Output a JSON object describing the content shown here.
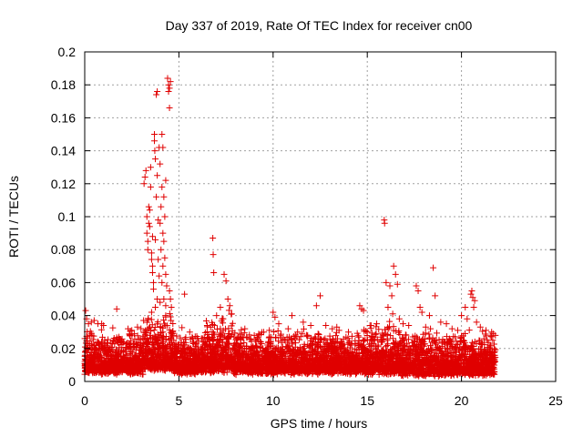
{
  "chart_data": {
    "type": "scatter",
    "title": "Day 337 of 2019, Rate Of TEC Index for receiver cn00",
    "xlabel": "GPS time / hours",
    "ylabel": "ROTI / TECUs",
    "xlim": [
      0,
      25
    ],
    "ylim": [
      0,
      0.2
    ],
    "xticks": [
      0,
      5,
      10,
      15,
      20,
      25
    ],
    "yticks": [
      0,
      0.02,
      0.04,
      0.06,
      0.08,
      0.1,
      0.12,
      0.14,
      0.16,
      0.18,
      0.2
    ],
    "xtick_labels": [
      "0",
      "5",
      "10",
      "15",
      "20",
      "25"
    ],
    "ytick_labels": [
      "0",
      "0.02",
      "0.04",
      "0.06",
      "0.08",
      "0.1",
      "0.12",
      "0.14",
      "0.16",
      "0.18",
      "0.2"
    ],
    "grid": true,
    "marker": "+",
    "color": "#e00000",
    "series": [
      {
        "points": [
          [
            0.05,
            0.043
          ],
          [
            0.1,
            0.038
          ],
          [
            0.2,
            0.035
          ],
          [
            0.35,
            0.036
          ],
          [
            0.5,
            0.037
          ],
          [
            0.7,
            0.035
          ],
          [
            0.9,
            0.035
          ],
          [
            1.0,
            0.034
          ],
          [
            1.7,
            0.044
          ],
          [
            2.3,
            0.032
          ],
          [
            2.5,
            0.031
          ],
          [
            2.8,
            0.033
          ],
          [
            3.15,
            0.12
          ],
          [
            3.2,
            0.124
          ],
          [
            3.25,
            0.128
          ],
          [
            3.3,
            0.1
          ],
          [
            3.3,
            0.09
          ],
          [
            3.35,
            0.085
          ],
          [
            3.35,
            0.08
          ],
          [
            3.4,
            0.106
          ],
          [
            3.4,
            0.096
          ],
          [
            3.45,
            0.104
          ],
          [
            3.45,
            0.094
          ],
          [
            3.5,
            0.13
          ],
          [
            3.5,
            0.118
          ],
          [
            3.55,
            0.078
          ],
          [
            3.55,
            0.074
          ],
          [
            3.6,
            0.07
          ],
          [
            3.6,
            0.066
          ],
          [
            3.6,
            0.088
          ],
          [
            3.65,
            0.06
          ],
          [
            3.65,
            0.056
          ],
          [
            3.7,
            0.15
          ],
          [
            3.7,
            0.146
          ],
          [
            3.72,
            0.14
          ],
          [
            3.75,
            0.135
          ],
          [
            3.75,
            0.086
          ],
          [
            3.8,
            0.174
          ],
          [
            3.8,
            0.112
          ],
          [
            3.85,
            0.176
          ],
          [
            3.85,
            0.125
          ],
          [
            3.85,
            0.05
          ],
          [
            3.9,
            0.098
          ],
          [
            3.9,
            0.074
          ],
          [
            3.95,
            0.142
          ],
          [
            3.95,
            0.064
          ],
          [
            4.0,
            0.132
          ],
          [
            4.0,
            0.096
          ],
          [
            4.05,
            0.106
          ],
          [
            4.05,
            0.08
          ],
          [
            4.1,
            0.15
          ],
          [
            4.1,
            0.118
          ],
          [
            4.1,
            0.06
          ],
          [
            4.15,
            0.142
          ],
          [
            4.15,
            0.09
          ],
          [
            4.15,
            0.07
          ],
          [
            4.2,
            0.112
          ],
          [
            4.2,
            0.085
          ],
          [
            4.2,
            0.05
          ],
          [
            4.25,
            0.1
          ],
          [
            4.25,
            0.075
          ],
          [
            4.3,
            0.122
          ],
          [
            4.3,
            0.065
          ],
          [
            4.3,
            0.046
          ],
          [
            4.35,
            0.058
          ],
          [
            4.4,
            0.184
          ],
          [
            4.45,
            0.18
          ],
          [
            4.45,
            0.176
          ],
          [
            4.5,
            0.178
          ],
          [
            4.5,
            0.166
          ],
          [
            4.5,
            0.055
          ],
          [
            4.55,
            0.182
          ],
          [
            4.55,
            0.05
          ],
          [
            4.6,
            0.045
          ],
          [
            3.55,
            0.042
          ],
          [
            3.75,
            0.045
          ],
          [
            4.0,
            0.048
          ],
          [
            4.3,
            0.04
          ],
          [
            5.3,
            0.053
          ],
          [
            6.5,
            0.034
          ],
          [
            6.8,
            0.087
          ],
          [
            6.82,
            0.077
          ],
          [
            6.85,
            0.066
          ],
          [
            7.0,
            0.04
          ],
          [
            7.2,
            0.045
          ],
          [
            7.4,
            0.065
          ],
          [
            7.5,
            0.061
          ],
          [
            7.6,
            0.05
          ],
          [
            7.7,
            0.046
          ],
          [
            7.3,
            0.038
          ],
          [
            7.8,
            0.041
          ],
          [
            7.2,
            0.032
          ],
          [
            8.5,
            0.032
          ],
          [
            9.0,
            0.028
          ],
          [
            9.5,
            0.03
          ],
          [
            9.8,
            0.031
          ],
          [
            10.0,
            0.042
          ],
          [
            10.1,
            0.039
          ],
          [
            10.3,
            0.035
          ],
          [
            10.8,
            0.032
          ],
          [
            11.0,
            0.04
          ],
          [
            11.3,
            0.03
          ],
          [
            11.6,
            0.036
          ],
          [
            12.0,
            0.034
          ],
          [
            12.3,
            0.046
          ],
          [
            12.5,
            0.052
          ],
          [
            12.8,
            0.034
          ],
          [
            13.5,
            0.031
          ],
          [
            14.0,
            0.03
          ],
          [
            14.6,
            0.046
          ],
          [
            14.7,
            0.044
          ],
          [
            14.8,
            0.043
          ],
          [
            15.0,
            0.03
          ],
          [
            15.2,
            0.034
          ],
          [
            15.5,
            0.035
          ],
          [
            15.9,
            0.098
          ],
          [
            15.92,
            0.096
          ],
          [
            16.0,
            0.06
          ],
          [
            16.2,
            0.058
          ],
          [
            16.3,
            0.052
          ],
          [
            16.4,
            0.07
          ],
          [
            16.5,
            0.065
          ],
          [
            16.6,
            0.059
          ],
          [
            16.1,
            0.045
          ],
          [
            16.35,
            0.041
          ],
          [
            16.7,
            0.038
          ],
          [
            16.9,
            0.035
          ],
          [
            17.2,
            0.034
          ],
          [
            17.6,
            0.058
          ],
          [
            17.7,
            0.055
          ],
          [
            17.8,
            0.045
          ],
          [
            17.9,
            0.042
          ],
          [
            18.1,
            0.033
          ],
          [
            18.3,
            0.04
          ],
          [
            18.5,
            0.069
          ],
          [
            18.6,
            0.052
          ],
          [
            18.9,
            0.036
          ],
          [
            19.2,
            0.035
          ],
          [
            19.5,
            0.032
          ],
          [
            19.8,
            0.031
          ],
          [
            20.0,
            0.04
          ],
          [
            20.2,
            0.045
          ],
          [
            20.3,
            0.038
          ],
          [
            20.5,
            0.053
          ],
          [
            20.55,
            0.055
          ],
          [
            20.6,
            0.051
          ],
          [
            20.65,
            0.045
          ],
          [
            20.7,
            0.049
          ],
          [
            20.8,
            0.036
          ],
          [
            21.0,
            0.033
          ],
          [
            21.3,
            0.031
          ],
          [
            21.6,
            0.03
          ],
          [
            21.8,
            0.028
          ]
        ],
        "band": {
          "segments": [
            {
              "x": [
                0,
                3.1
              ],
              "low": 0.004,
              "high": 0.03
            },
            {
              "x": [
                3.1,
                4.7
              ],
              "low": 0.006,
              "high": 0.04
            },
            {
              "x": [
                4.7,
                6.3
              ],
              "low": 0.004,
              "high": 0.03
            },
            {
              "x": [
                6.3,
                7.9
              ],
              "low": 0.005,
              "high": 0.04
            },
            {
              "x": [
                7.9,
                14.5
              ],
              "low": 0.004,
              "high": 0.03
            },
            {
              "x": [
                14.5,
                16.8
              ],
              "low": 0.004,
              "high": 0.035
            },
            {
              "x": [
                16.8,
                21.8
              ],
              "low": 0.003,
              "high": 0.03
            }
          ]
        }
      }
    ]
  }
}
